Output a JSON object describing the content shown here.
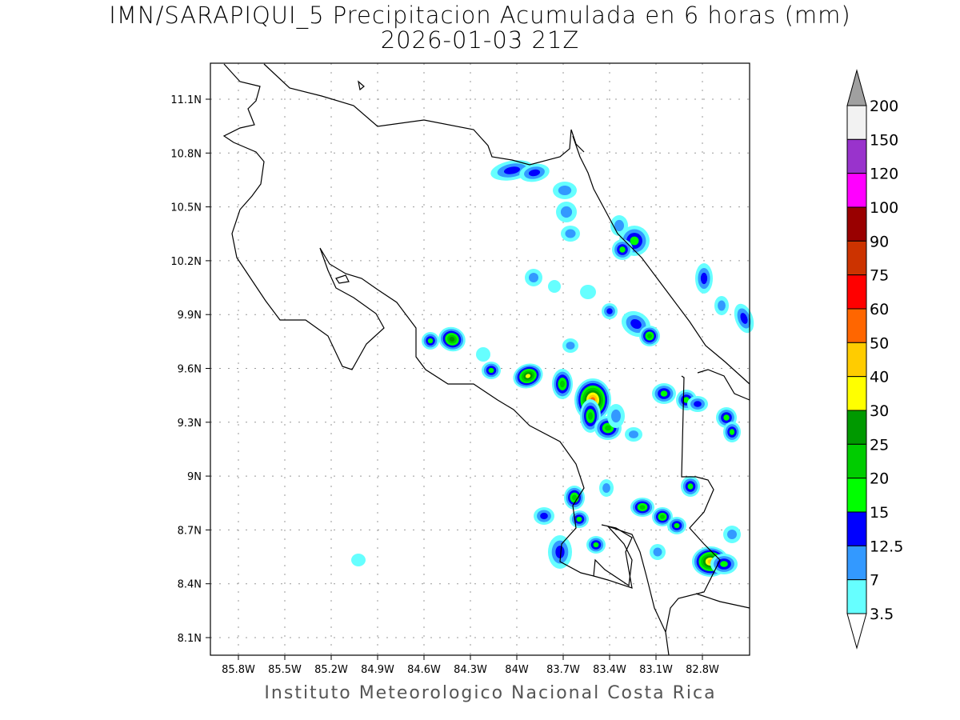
{
  "title": "IMN/SARAPIQUI_5 Precipitacion Acumulada en 6 horas (mm)",
  "subtitle": "2026-01-03 21Z",
  "credit": "Instituto Meteorologico Nacional Costa Rica",
  "map": {
    "lon_range": [
      -86.0,
      -82.5
    ],
    "lat_range": [
      8.0,
      11.3
    ]
  },
  "lon_labels": [
    "85.8W",
    "85.5W",
    "85.2W",
    "84.9W",
    "84.6W",
    "84.3W",
    "84W",
    "83.7W",
    "83.4W",
    "83.1W",
    "82.8W"
  ],
  "lat_labels": [
    "11.1N",
    "10.8N",
    "10.5N",
    "10.2N",
    "9.9N",
    "9.6N",
    "9.3N",
    "9N",
    "8.7N",
    "8.4N",
    "8.1N"
  ],
  "colorbar": {
    "labels": [
      "200",
      "150",
      "120",
      "100",
      "90",
      "75",
      "60",
      "50",
      "40",
      "30",
      "25",
      "20",
      "15",
      "12.5",
      "7",
      "3.5"
    ],
    "colors": [
      "#f2f2f2",
      "#9933cc",
      "#ff00ff",
      "#990000",
      "#cc3300",
      "#ff0000",
      "#ff6600",
      "#ffcc00",
      "#ffff00",
      "#009900",
      "#00cc00",
      "#00ff00",
      "#0000ff",
      "#3399ff",
      "#66ffff"
    ],
    "over_color": "#a0a0a0"
  }
}
